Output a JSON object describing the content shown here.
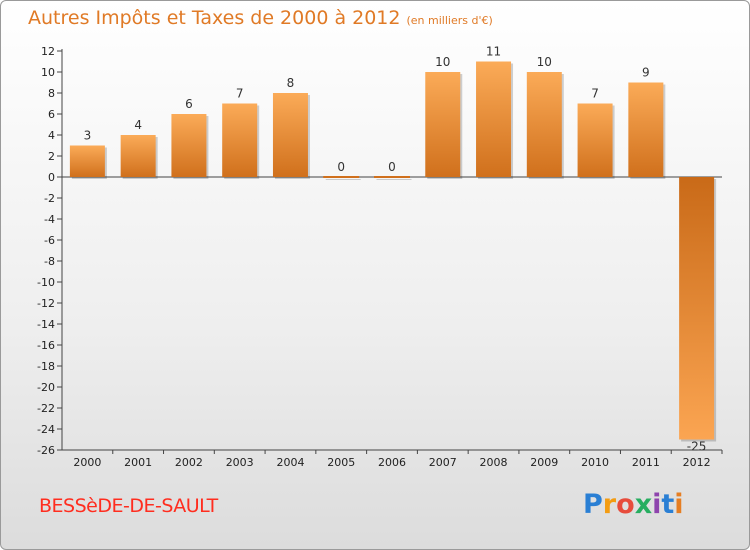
{
  "title": "Autres Impôts et Taxes de 2000 à 2012",
  "unit_note": "(en milliers d'€)",
  "city": "BESSèDE-DE-SAULT",
  "logo": {
    "text": "Proxiti",
    "letters": [
      "P",
      "r",
      "o",
      "x",
      "i",
      "t",
      "i"
    ],
    "colors": [
      "#2a7fd4",
      "#f39c12",
      "#e74c3c",
      "#27ae60",
      "#8e44ad",
      "#2a7fd4",
      "#e67e22"
    ]
  },
  "colors": {
    "title": "#e07a26",
    "city": "#ff2d1f",
    "bar_light": "#f9a04a",
    "bar_dark": "#d0701c"
  },
  "chart_data": {
    "type": "bar",
    "categories": [
      "2000",
      "2001",
      "2002",
      "2003",
      "2004",
      "2005",
      "2006",
      "2007",
      "2008",
      "2009",
      "2010",
      "2011",
      "2012"
    ],
    "values": [
      3,
      4,
      6,
      7,
      8,
      0,
      0,
      10,
      11,
      10,
      7,
      9,
      -25
    ],
    "data_labels": [
      "3",
      "4",
      "6",
      "7",
      "8",
      "0",
      "0",
      "10",
      "11",
      "10",
      "7",
      "9",
      "-25"
    ],
    "ylim": [
      -26,
      12
    ],
    "yticks": [
      12,
      10,
      8,
      6,
      4,
      2,
      0,
      -2,
      -4,
      -6,
      -8,
      -10,
      -12,
      -14,
      -16,
      -18,
      -20,
      -22,
      -24,
      -26
    ],
    "grid": false,
    "xlabel": "",
    "ylabel": ""
  }
}
